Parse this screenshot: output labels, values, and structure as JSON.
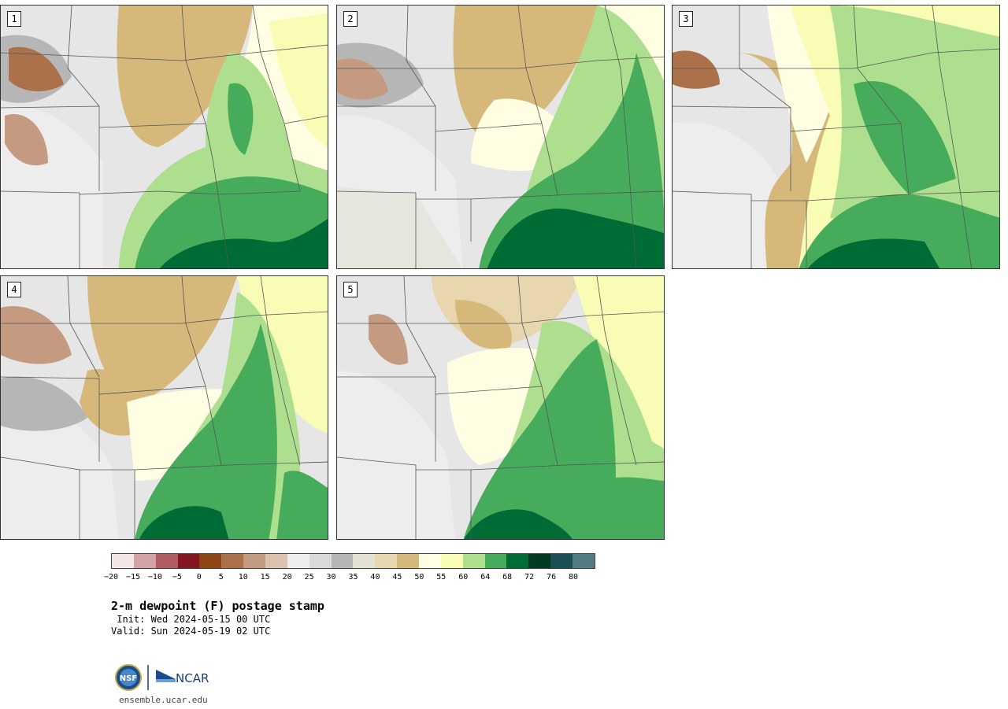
{
  "panels": [
    {
      "label": "1"
    },
    {
      "label": "2"
    },
    {
      "label": "3"
    },
    {
      "label": "4"
    },
    {
      "label": "5"
    }
  ],
  "colorbar": {
    "colors": [
      "#f4e6e6",
      "#d3a1a6",
      "#b05c64",
      "#851621",
      "#8d4614",
      "#aa714b",
      "#c49a80",
      "#dcc2ae",
      "#ededed",
      "#d9d9d9",
      "#b6b6b6",
      "#e2e1d4",
      "#e7d6ae",
      "#d6b97a",
      "#fffde2",
      "#f8fcb5",
      "#addf8e",
      "#46ac5c",
      "#006c35",
      "#003b22",
      "#1c5057",
      "#527c82"
    ],
    "ticks": [
      "−20",
      "−15",
      "−10",
      "−5",
      "0",
      "5",
      "10",
      "15",
      "20",
      "25",
      "30",
      "35",
      "40",
      "45",
      "50",
      "55",
      "60",
      "64",
      "68",
      "72",
      "76",
      "80"
    ]
  },
  "title": "2-m dewpoint (F) postage stamp",
  "init": " Init: Wed 2024-05-15 00 UTC",
  "valid": "Valid: Sun 2024-05-19 02 UTC",
  "logo": {
    "nsf_text": "NSF",
    "ncar_text": "NCAR"
  },
  "site": "ensemble.ucar.edu"
}
